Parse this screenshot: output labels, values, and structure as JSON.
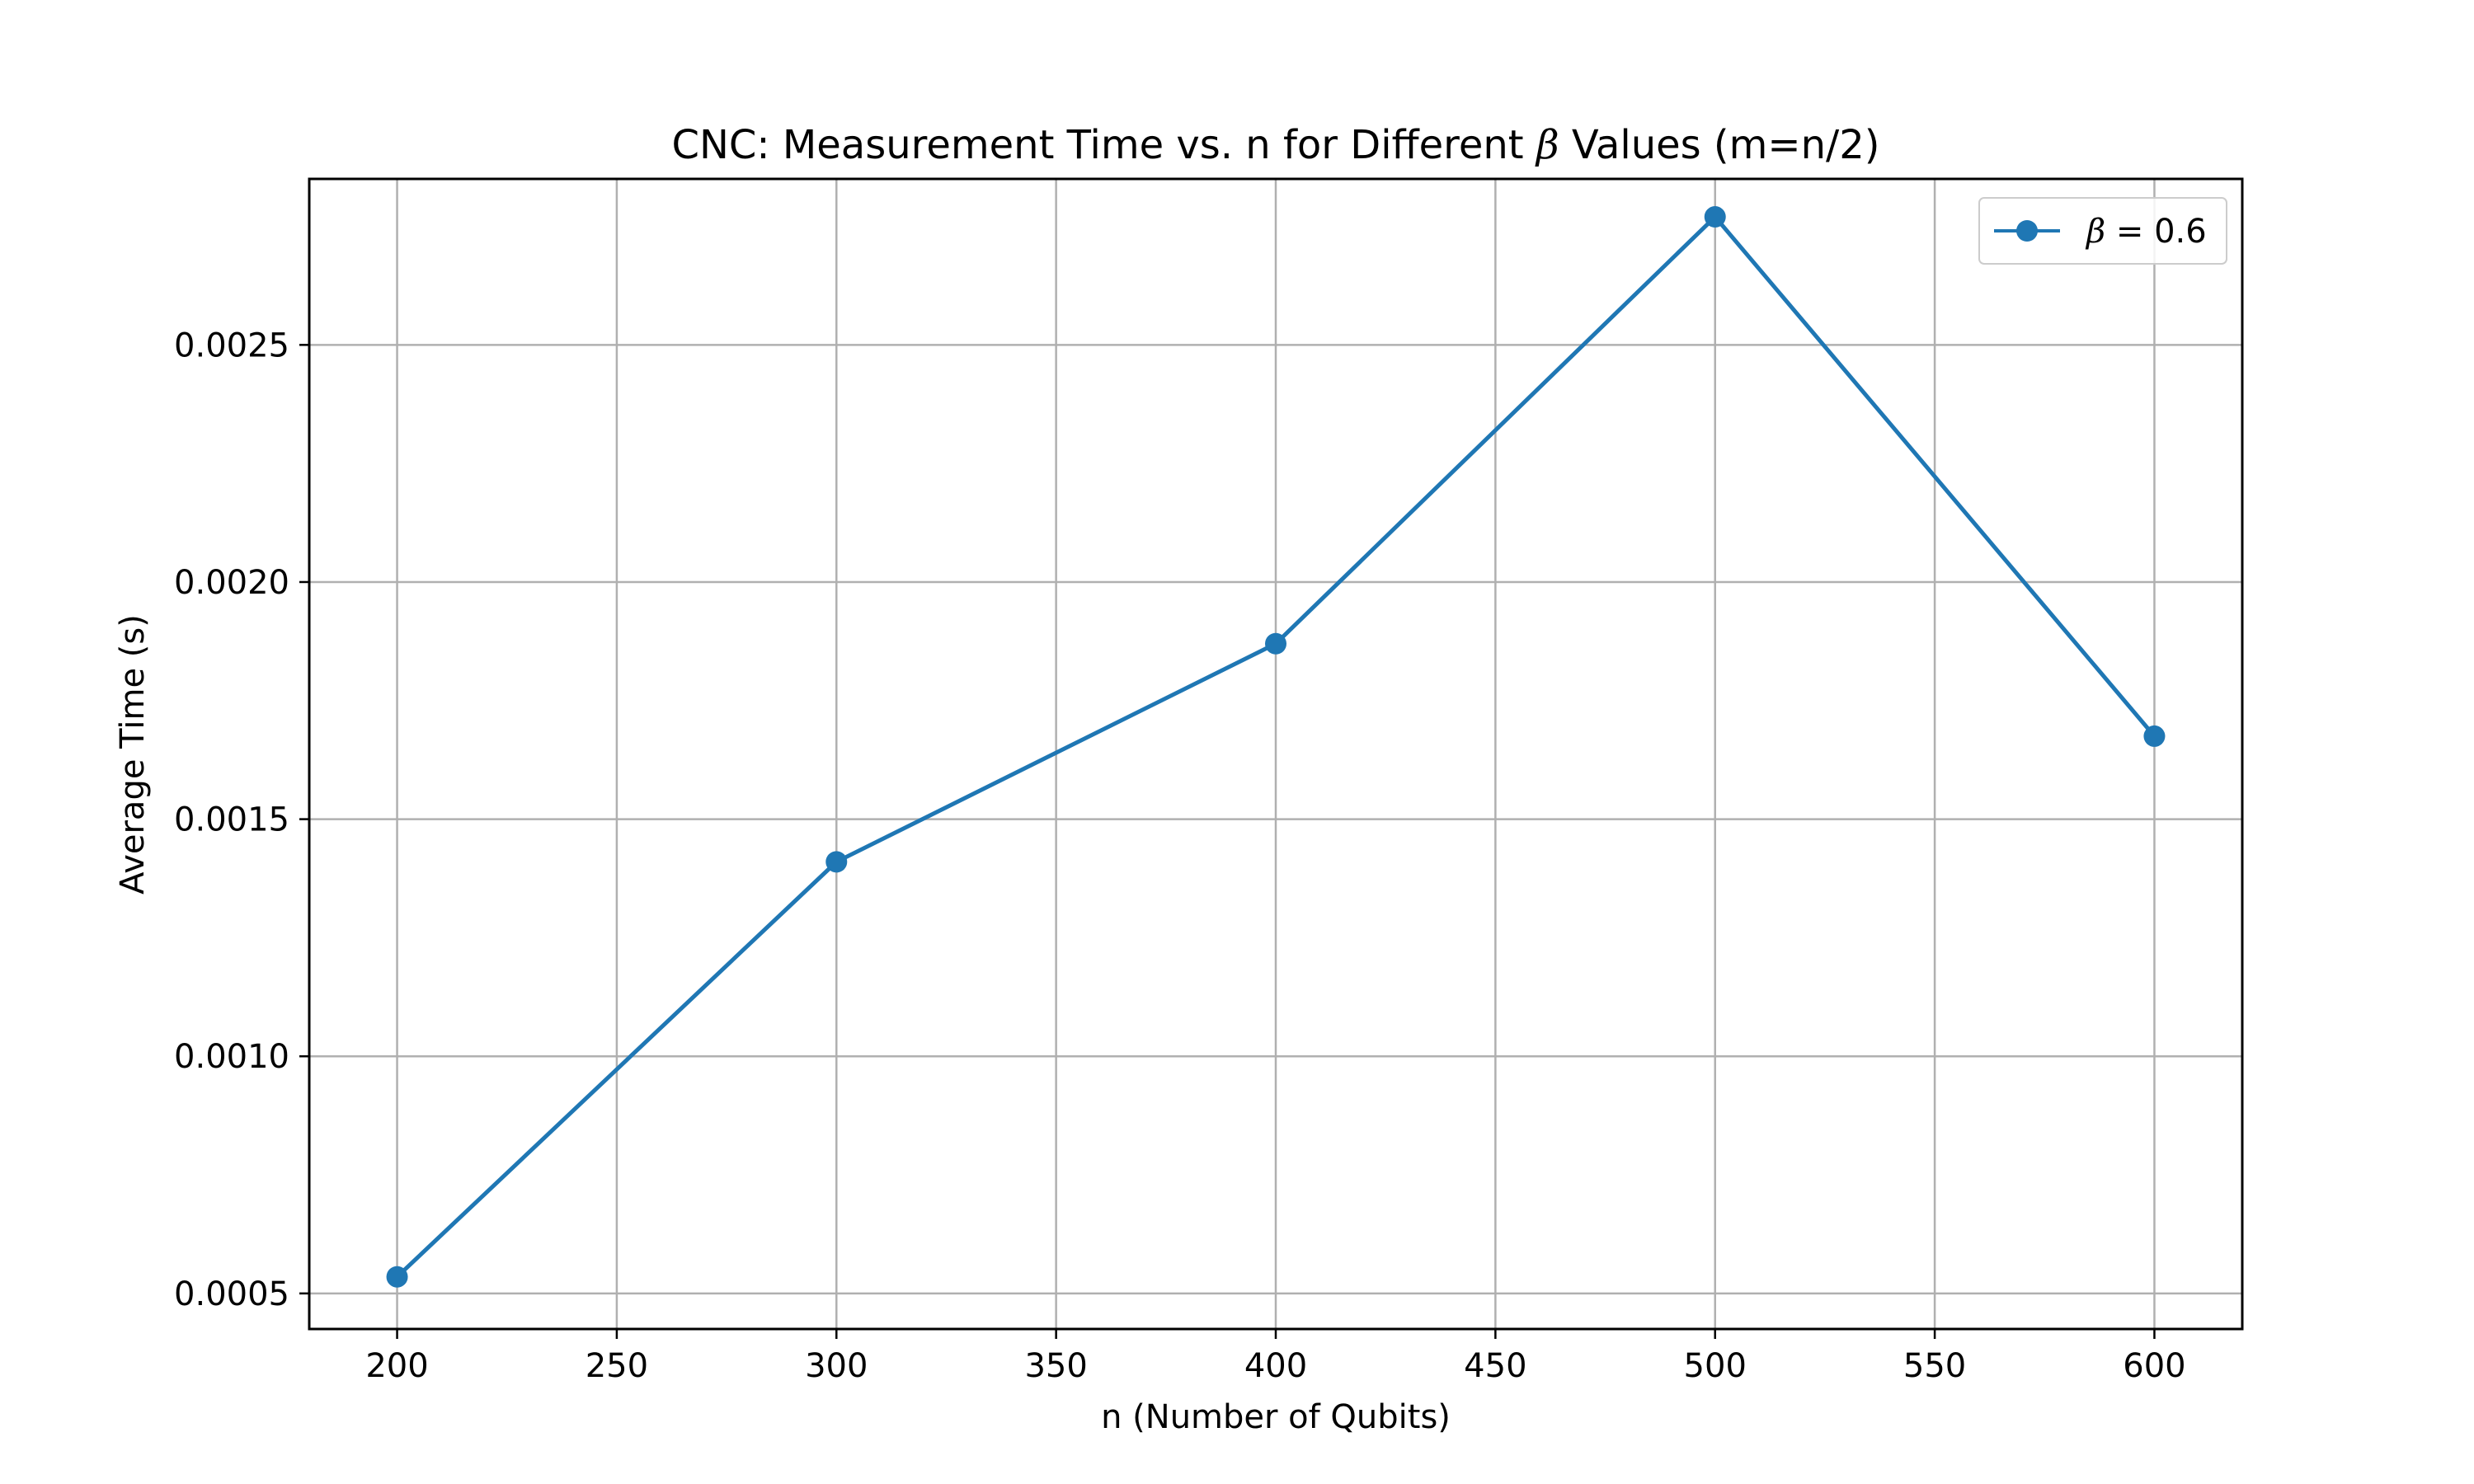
{
  "chart_data": {
    "type": "line",
    "title_prefix": "CNC: Measurement Time vs. n for Different ",
    "title_symbol": "β",
    "title_suffix": " Values (m=n/2)",
    "xlabel": "n (Number of Qubits)",
    "ylabel": "Average Time (s)",
    "xlim": [
      180,
      620
    ],
    "ylim": [
      0.000425,
      0.00285
    ],
    "xticks": [
      200,
      250,
      300,
      350,
      400,
      450,
      500,
      550,
      600
    ],
    "xtick_labels": [
      "200",
      "250",
      "300",
      "350",
      "400",
      "450",
      "500",
      "550",
      "600"
    ],
    "yticks": [
      0.0005,
      0.001,
      0.0015,
      0.002,
      0.0025
    ],
    "ytick_labels": [
      "0.0005",
      "0.0010",
      "0.0015",
      "0.0020",
      "0.0025"
    ],
    "grid": true,
    "legend_position": "upper right",
    "series": [
      {
        "name_symbol": "β",
        "name_rest": " = 0.6",
        "color": "#1f77b4",
        "marker": "circle",
        "x": [
          200,
          300,
          400,
          500,
          600
        ],
        "y": [
          0.000535,
          0.00141,
          0.00187,
          0.00277,
          0.001675
        ]
      }
    ]
  }
}
